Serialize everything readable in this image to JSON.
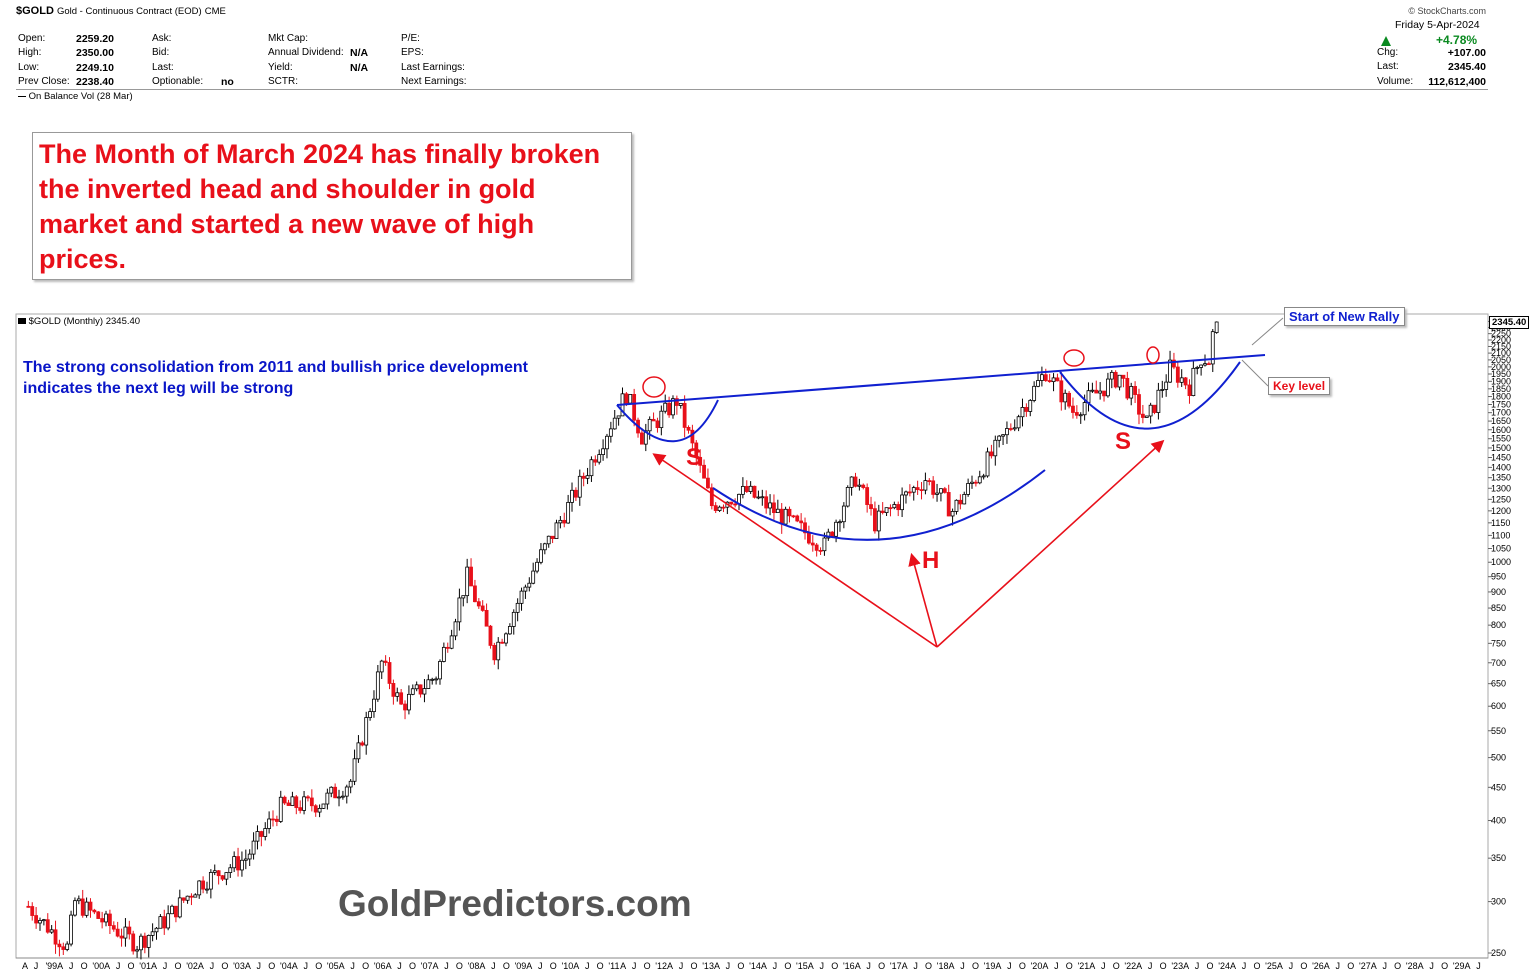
{
  "header": {
    "symbol": "$GOLD",
    "description": "Gold - Continuous Contract (EOD)",
    "exchange": "CME",
    "source": "© StockCharts.com",
    "date": "Friday  5-Apr-2024",
    "change_pct": "+4.78%",
    "fields": [
      {
        "label": "Open:",
        "value": "2259.20"
      },
      {
        "label": "High:",
        "value": "2350.00"
      },
      {
        "label": "Low:",
        "value": "2249.10"
      },
      {
        "label": "Prev Close:",
        "value": "2238.40"
      }
    ],
    "fields2": [
      {
        "label": "Ask:",
        "value": ""
      },
      {
        "label": "Bid:",
        "value": ""
      },
      {
        "label": "Last:",
        "value": ""
      },
      {
        "label": "Optionable:",
        "value": "no"
      }
    ],
    "fields3": [
      {
        "label": "Mkt Cap:",
        "value": ""
      },
      {
        "label": "Annual Dividend:",
        "value": "N/A"
      },
      {
        "label": "Yield:",
        "value": "N/A"
      },
      {
        "label": "SCTR:",
        "value": ""
      }
    ],
    "fields4": [
      {
        "label": "P/E:",
        "value": ""
      },
      {
        "label": "EPS:",
        "value": ""
      },
      {
        "label": "Last Earnings:",
        "value": ""
      },
      {
        "label": "Next Earnings:",
        "value": ""
      }
    ],
    "fields5": [
      {
        "label": "Chg:",
        "value": "+107.00"
      },
      {
        "label": "Last:",
        "value": "2345.40"
      },
      {
        "label": "Volume:",
        "value": "112,612,400"
      }
    ],
    "obv_label": "On Balance Vol (28 Mar)"
  },
  "callout_text": "The Month of March 2024 has finally broken the inverted head and shoulder in gold market and started a new wave of high prices.",
  "blue_note": "The strong consolidation from 2011 and bullish price development indicates the next leg will be strong",
  "watermark": "GoldPredictors.com",
  "annotations": {
    "start_rally": "Start of New Rally",
    "key_level": "Key level",
    "left_shoulder": "S",
    "head": "H",
    "right_shoulder": "S"
  },
  "colors": {
    "up": "#000000",
    "down": "#e8101a",
    "neckline": "#1020d0",
    "arrows": "#e8101a",
    "note_blue": "#0a16c8"
  },
  "chart_data": {
    "type": "candlestick",
    "title": "$GOLD (Monthly) 2345.40",
    "last_value_label": "2345.40",
    "y_scale": "log",
    "ylim": [
      250,
      2400
    ],
    "y_ticks": [
      2350,
      2300,
      2250,
      2200,
      2150,
      2100,
      2050,
      2000,
      1950,
      1900,
      1850,
      1800,
      1750,
      1700,
      1650,
      1600,
      1550,
      1500,
      1450,
      1400,
      1350,
      1300,
      1250,
      1200,
      1150,
      1100,
      1050,
      1000,
      950,
      900,
      850,
      800,
      750,
      700,
      650,
      600,
      550,
      500,
      450,
      400,
      350,
      300,
      250
    ],
    "x_tick_labels": [
      "A",
      "J",
      "'99",
      "A",
      "J",
      "O",
      "'00",
      "A",
      "J",
      "O",
      "'01",
      "A",
      "J",
      "O",
      "'02",
      "A",
      "J",
      "O",
      "'03",
      "A",
      "J",
      "O",
      "'04",
      "A",
      "J",
      "O",
      "'05",
      "A",
      "J",
      "O",
      "'06",
      "A",
      "J",
      "O",
      "'07",
      "A",
      "J",
      "O",
      "'08",
      "A",
      "J",
      "O",
      "'09",
      "A",
      "J",
      "O",
      "'10",
      "A",
      "J",
      "O",
      "'11",
      "A",
      "J",
      "O",
      "'12",
      "A",
      "J",
      "O",
      "'13",
      "A",
      "J",
      "O",
      "'14",
      "A",
      "J",
      "O",
      "'15",
      "A",
      "J",
      "O",
      "'16",
      "A",
      "J",
      "O",
      "'17",
      "A",
      "J",
      "O",
      "'18",
      "A",
      "J",
      "O",
      "'19",
      "A",
      "J",
      "O",
      "'20",
      "A",
      "J",
      "O",
      "'21",
      "A",
      "J",
      "O",
      "'22",
      "A",
      "J",
      "O",
      "'23",
      "A",
      "J",
      "O",
      "'24",
      "A",
      "J",
      "O",
      "'25",
      "A",
      "J",
      "O",
      "'26",
      "A",
      "J",
      "O",
      "'27",
      "A",
      "J",
      "O",
      "'28",
      "A",
      "J",
      "O",
      "'29",
      "A",
      "J"
    ],
    "price_path": [
      {
        "date": "1998-10",
        "close": 295
      },
      {
        "date": "1999-08",
        "close": 255
      },
      {
        "date": "1999-10",
        "close": 300
      },
      {
        "date": "2001-02",
        "close": 258
      },
      {
        "date": "2001-09",
        "close": 280
      },
      {
        "date": "2002-06",
        "close": 320
      },
      {
        "date": "2003-06",
        "close": 350
      },
      {
        "date": "2004-03",
        "close": 420
      },
      {
        "date": "2005-01",
        "close": 425
      },
      {
        "date": "2005-09",
        "close": 460
      },
      {
        "date": "2006-05",
        "close": 700
      },
      {
        "date": "2006-10",
        "close": 600
      },
      {
        "date": "2007-07",
        "close": 670
      },
      {
        "date": "2008-03",
        "close": 950
      },
      {
        "date": "2008-10",
        "close": 730
      },
      {
        "date": "2009-09",
        "close": 1000
      },
      {
        "date": "2010-06",
        "close": 1250
      },
      {
        "date": "2011-08",
        "close": 1820
      },
      {
        "date": "2011-12",
        "close": 1565
      },
      {
        "date": "2012-09",
        "close": 1775
      },
      {
        "date": "2013-06",
        "close": 1225
      },
      {
        "date": "2014-03",
        "close": 1285
      },
      {
        "date": "2015-11",
        "close": 1060
      },
      {
        "date": "2016-07",
        "close": 1350
      },
      {
        "date": "2016-12",
        "close": 1150
      },
      {
        "date": "2018-01",
        "close": 1345
      },
      {
        "date": "2018-08",
        "close": 1200
      },
      {
        "date": "2019-08",
        "close": 1520
      },
      {
        "date": "2020-08",
        "close": 1970
      },
      {
        "date": "2021-03",
        "close": 1710
      },
      {
        "date": "2022-03",
        "close": 1940
      },
      {
        "date": "2022-10",
        "close": 1640
      },
      {
        "date": "2023-04",
        "close": 1990
      },
      {
        "date": "2023-09",
        "close": 1870
      },
      {
        "date": "2023-12",
        "close": 2070
      },
      {
        "date": "2024-02",
        "close": 2050
      },
      {
        "date": "2024-03",
        "close": 2238
      },
      {
        "date": "2024-04",
        "close": 2345
      }
    ],
    "neckline": [
      {
        "date": "2011-04",
        "price": 1780
      },
      {
        "date": "2024-04",
        "price": 2080
      }
    ],
    "legend": "none",
    "grid": true
  }
}
